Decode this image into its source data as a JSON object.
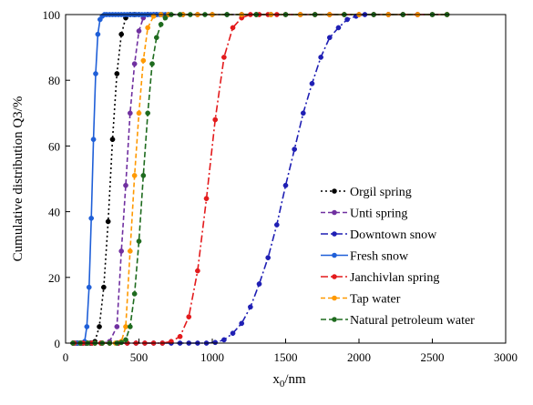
{
  "chart_data": {
    "type": "line",
    "title": "",
    "xlabel_main": "x",
    "xlabel_sub": "0",
    "xlabel_unit": "/nm",
    "ylabel": "Cumulative distribution Q3/%",
    "xlim": [
      0,
      3000
    ],
    "ylim": [
      0,
      100
    ],
    "xticks": [
      0,
      500,
      1000,
      1500,
      2000,
      2500,
      3000
    ],
    "yticks": [
      0,
      20,
      40,
      60,
      80,
      100
    ],
    "grid": false,
    "legend_position": "bottom-right",
    "series": [
      {
        "name": "Orgil spring",
        "color": "#000000",
        "dash": "2,3",
        "x": [
          50,
          80,
          110,
          140,
          170,
          200,
          230,
          260,
          290,
          320,
          350,
          380,
          410,
          440,
          470,
          500,
          560,
          620,
          700,
          800,
          900,
          1000,
          1100,
          1200,
          1300,
          1400,
          1500,
          1600,
          1700,
          1800,
          1900,
          2000,
          2100,
          2200,
          2300,
          2400,
          2500,
          2600
        ],
        "y": [
          0,
          0,
          0,
          0,
          0,
          0.5,
          5,
          17,
          37,
          62,
          82,
          94,
          99,
          100,
          100,
          100,
          100,
          100,
          100,
          100,
          100,
          100,
          100,
          100,
          100,
          100,
          100,
          100,
          100,
          100,
          100,
          100,
          100,
          100,
          100,
          100,
          100,
          100
        ]
      },
      {
        "name": "Unti spring",
        "color": "#7030a0",
        "dash": "5,3",
        "x": [
          50,
          100,
          150,
          200,
          250,
          300,
          350,
          380,
          410,
          440,
          470,
          500,
          530,
          560,
          600,
          650,
          700,
          800,
          900,
          1000,
          1200,
          1400,
          1600,
          1800,
          2000,
          2200,
          2400,
          2600
        ],
        "y": [
          0,
          0,
          0,
          0,
          0,
          0.5,
          5,
          28,
          48,
          70,
          85,
          95,
          99,
          100,
          100,
          100,
          100,
          100,
          100,
          100,
          100,
          100,
          100,
          100,
          100,
          100,
          100,
          100
        ]
      },
      {
        "name": "Downtown snow",
        "color": "#1f1fb4",
        "dash": "8,3,2,3",
        "x": [
          60,
          120,
          180,
          240,
          300,
          360,
          420,
          480,
          540,
          600,
          660,
          720,
          780,
          840,
          900,
          960,
          1020,
          1080,
          1140,
          1200,
          1260,
          1320,
          1380,
          1440,
          1500,
          1560,
          1620,
          1680,
          1740,
          1800,
          1860,
          1920,
          1980,
          2040,
          2100,
          2200,
          2300,
          2400,
          2500,
          2600
        ],
        "y": [
          0,
          0,
          0,
          0,
          0,
          0,
          0,
          0,
          0,
          0,
          0,
          0,
          0,
          0,
          0,
          0,
          0.2,
          1,
          3,
          6,
          11,
          18,
          26,
          36,
          48,
          59,
          70,
          79,
          87,
          93,
          96,
          98.5,
          99.5,
          100,
          100,
          100,
          100,
          100,
          100,
          100
        ]
      },
      {
        "name": "Fresh snow",
        "color": "#1f5fd8",
        "dash": "",
        "x": [
          50,
          70,
          90,
          110,
          130,
          145,
          160,
          175,
          190,
          205,
          220,
          235,
          250,
          265,
          280,
          300,
          320,
          340,
          360,
          380,
          400,
          420,
          440,
          460,
          480,
          500,
          520,
          540,
          560,
          580,
          600,
          620,
          640,
          660,
          680,
          700
        ],
        "y": [
          0,
          0,
          0,
          0,
          0.5,
          5,
          17,
          38,
          62,
          82,
          94,
          98.5,
          99.5,
          100,
          100,
          100,
          100,
          100,
          100,
          100,
          100,
          100,
          100,
          100,
          100,
          100,
          100,
          100,
          100,
          100,
          100,
          100,
          100,
          100,
          100,
          100
        ]
      },
      {
        "name": "Janchivlan spring",
        "color": "#e31a1c",
        "dash": "8,3,2,3",
        "x": [
          60,
          120,
          180,
          240,
          300,
          360,
          420,
          480,
          540,
          600,
          660,
          720,
          780,
          840,
          900,
          960,
          1020,
          1080,
          1140,
          1200,
          1260,
          1320,
          1380,
          1440,
          1500,
          1600,
          1700,
          1800,
          1900,
          2000,
          2100,
          2200,
          2300,
          2400,
          2500,
          2600
        ],
        "y": [
          0,
          0,
          0,
          0,
          0,
          0,
          0,
          0,
          0,
          0,
          0,
          0.5,
          2,
          8,
          22,
          44,
          68,
          87,
          96,
          99,
          100,
          100,
          100,
          100,
          100,
          100,
          100,
          100,
          100,
          100,
          100,
          100,
          100,
          100,
          100,
          100
        ]
      },
      {
        "name": "Tap water",
        "color": "#ff9900",
        "dash": "5,3",
        "x": [
          50,
          100,
          150,
          200,
          250,
          300,
          340,
          380,
          410,
          440,
          470,
          500,
          530,
          560,
          600,
          650,
          700,
          800,
          900,
          1000,
          1200,
          1400,
          1600,
          1800,
          2000,
          2200,
          2400,
          2600
        ],
        "y": [
          0,
          0,
          0,
          0,
          0,
          0,
          0,
          0.5,
          5,
          28,
          51,
          70,
          86,
          96,
          99.5,
          100,
          100,
          100,
          100,
          100,
          100,
          100,
          100,
          100,
          100,
          100,
          100,
          100
        ]
      },
      {
        "name": "Natural petroleum water",
        "color": "#1e6b1e",
        "dash": "6,3",
        "x": [
          50,
          100,
          150,
          200,
          250,
          300,
          350,
          380,
          410,
          440,
          470,
          500,
          530,
          560,
          590,
          620,
          650,
          680,
          720,
          780,
          850,
          950,
          1100,
          1300,
          1500,
          1700,
          1900,
          2100,
          2300,
          2500,
          2600
        ],
        "y": [
          0,
          0,
          0,
          0,
          0,
          0,
          0,
          0.2,
          1,
          5,
          15,
          31,
          51,
          70,
          85,
          93,
          97,
          99,
          100,
          100,
          100,
          100,
          100,
          100,
          100,
          100,
          100,
          100,
          100,
          100,
          100
        ]
      }
    ]
  }
}
